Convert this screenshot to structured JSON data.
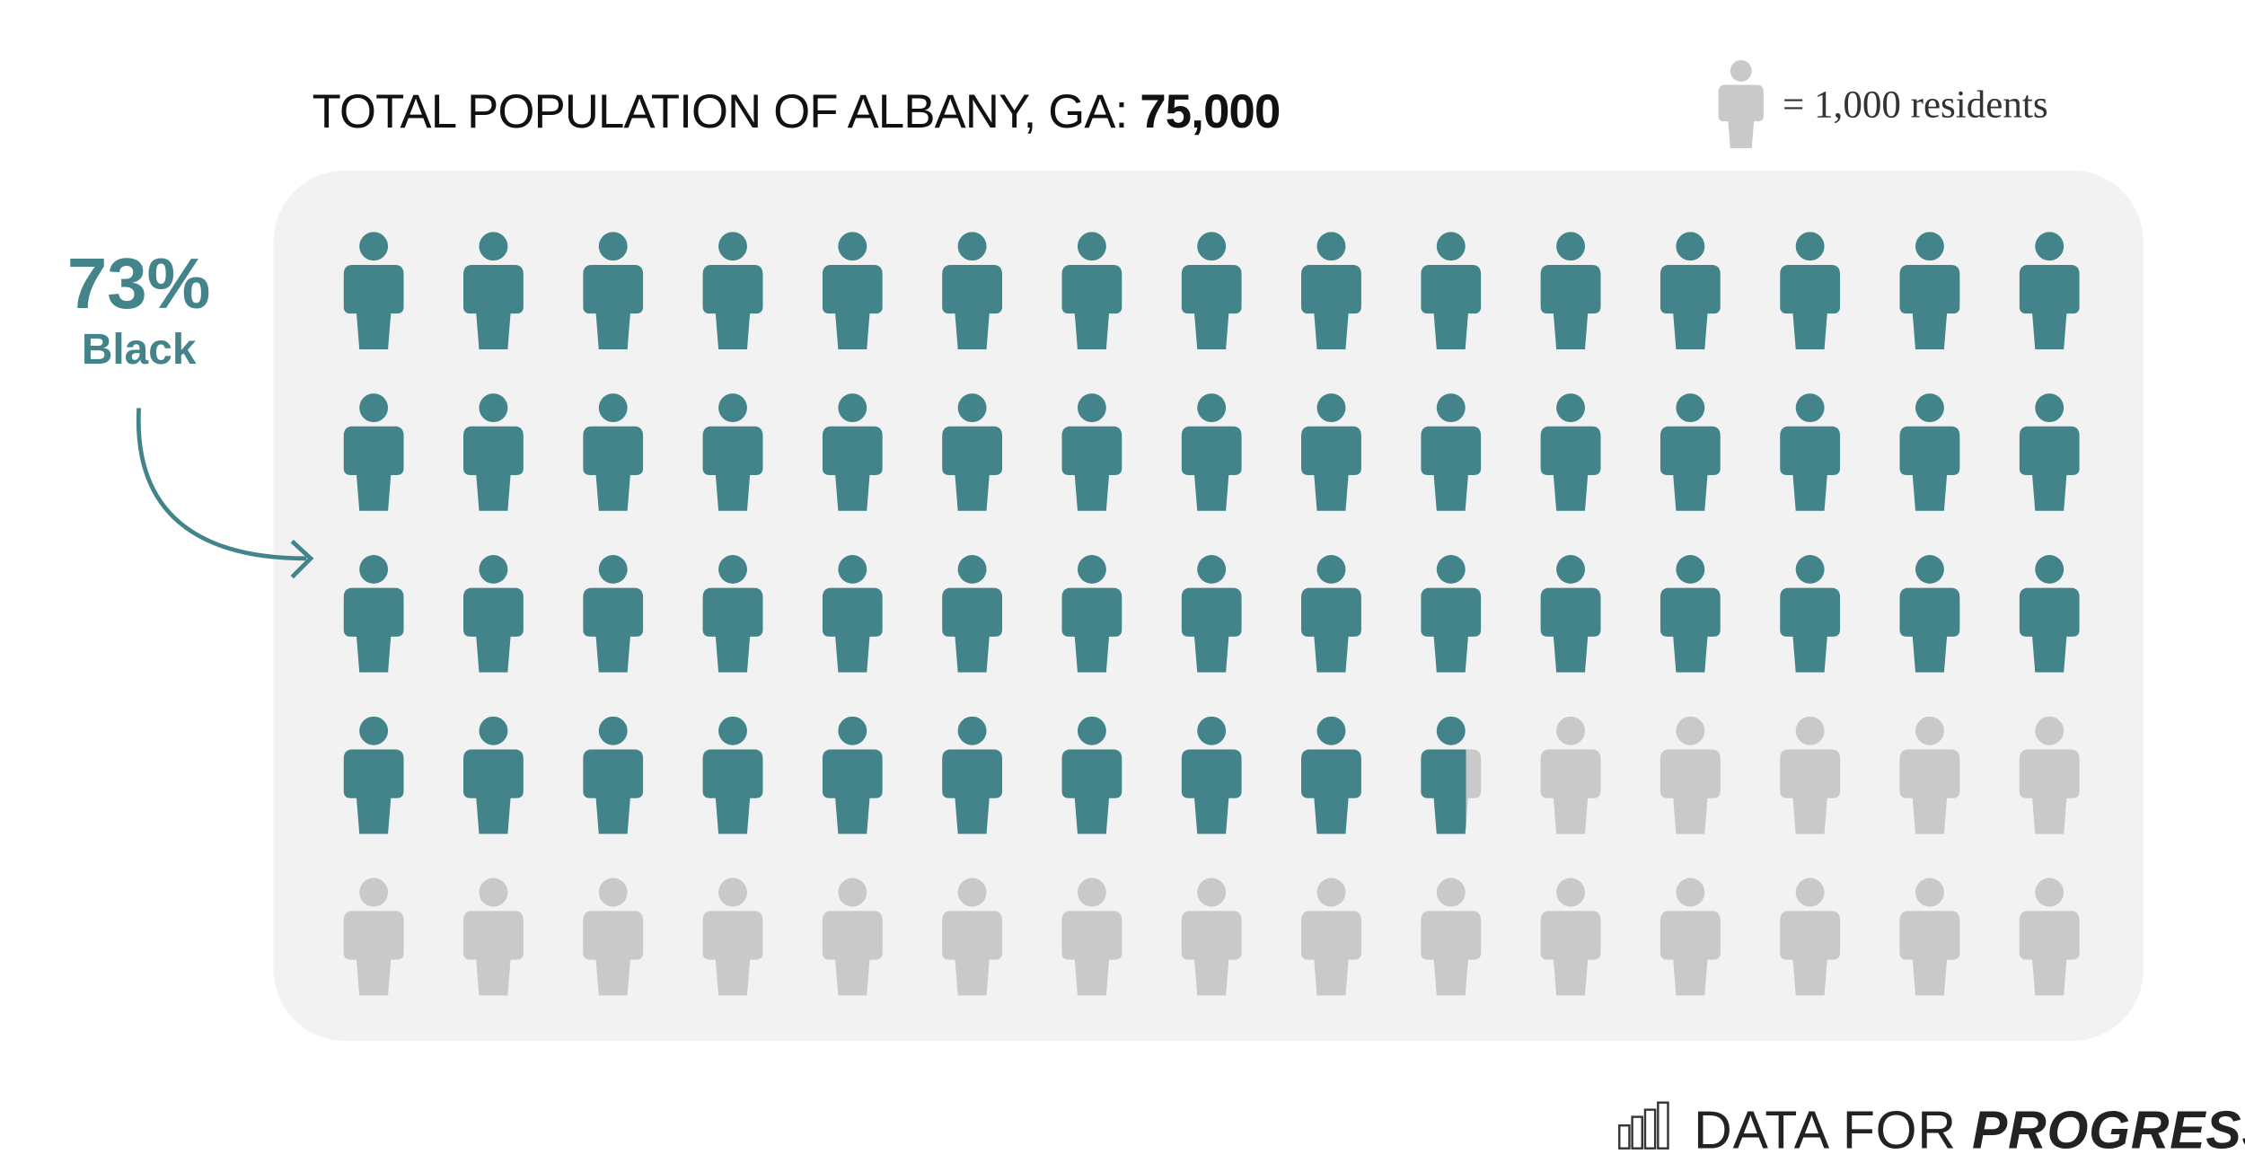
{
  "chart_data": {
    "type": "pictograph",
    "title": "TOTAL POPULATION OF ALBANY, GA:",
    "total": {
      "value": 75000,
      "label": "75,000"
    },
    "unit": {
      "value": 1000,
      "label": "= 1,000 residents"
    },
    "share": {
      "value": 73,
      "label": "73%"
    },
    "share_name": "Black",
    "color": "#43848b",
    "empty_color": "#c9c9c9",
    "brand": [
      "DATA FOR",
      "PROGRESS"
    ]
  }
}
